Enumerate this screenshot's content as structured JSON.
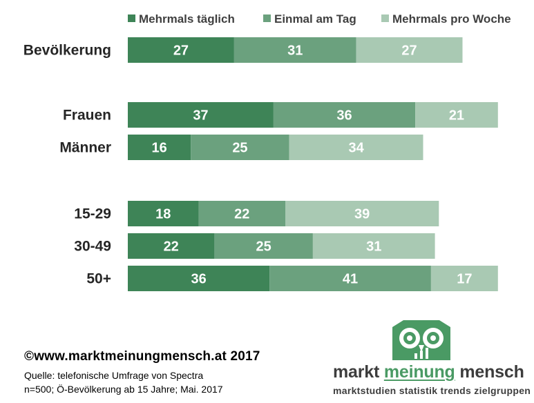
{
  "chart_data": {
    "type": "bar",
    "orientation": "horizontal",
    "stacked": true,
    "categories": [
      "Bevölkerung",
      "Frauen",
      "Männer",
      "15-29",
      "30-49",
      "50+"
    ],
    "series": [
      {
        "name": "Mehrmals täglich",
        "color": "#3e8457",
        "values": [
          27,
          37,
          16,
          18,
          22,
          36
        ]
      },
      {
        "name": "Einmal am Tag",
        "color": "#6ba17e",
        "values": [
          31,
          36,
          25,
          22,
          25,
          41
        ]
      },
      {
        "name": "Mehrmals pro Woche",
        "color": "#a9c9b3",
        "values": [
          27,
          21,
          34,
          39,
          31,
          17
        ]
      }
    ],
    "legend_position": "top",
    "data_labels": true,
    "grid": false
  },
  "footer": {
    "copyright": "©www.marktmeinungmensch.at 2017",
    "source_line1": "Quelle: telefonische Umfrage von Spectra",
    "source_line2": "n=500; Ö-Bevölkerung ab 15 Jahre; Mai. 2017"
  },
  "logo": {
    "word1": "markt",
    "word2": "meinung",
    "word3": "mensch",
    "tagline": "marktstudien statistik trends zielgruppen",
    "color": "#4a9a64"
  }
}
